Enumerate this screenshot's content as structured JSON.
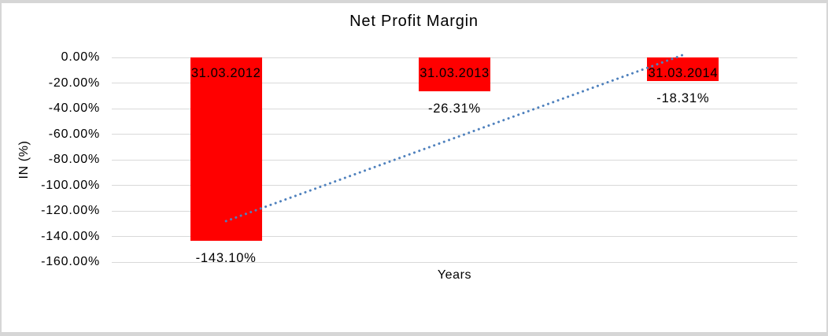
{
  "frame": {
    "background": "#ffffff",
    "border_color": "#d6d6d6"
  },
  "chart_data": {
    "type": "bar",
    "title": "Net Profit Margin",
    "xlabel": "Years",
    "ylabel": "IN (%)",
    "categories": [
      "31.03.2012",
      "31.03.2013",
      "31.03.2014"
    ],
    "values": [
      -143.1,
      -26.31,
      -18.31
    ],
    "data_labels": [
      "-143.10%",
      "-26.31%",
      "-18.31%"
    ],
    "bar_color": "#ff0000",
    "ylim": [
      -160,
      0
    ],
    "y_ticks": [
      0,
      -20,
      -40,
      -60,
      -80,
      -100,
      -120,
      -140,
      -160
    ],
    "y_tick_labels": [
      "0.00%",
      "-20.00%",
      "-40.00%",
      "-60.00%",
      "-80.00%",
      "-100.00%",
      "-120.00%",
      "-140.00%",
      "-160.00%"
    ],
    "grid": "horizontal",
    "gridline_color": "#d9d9d9",
    "legend": "none",
    "trendline": {
      "type": "linear",
      "style": "dotted",
      "color": "#4f81bd",
      "start_value": -128,
      "end_value": 2
    }
  }
}
